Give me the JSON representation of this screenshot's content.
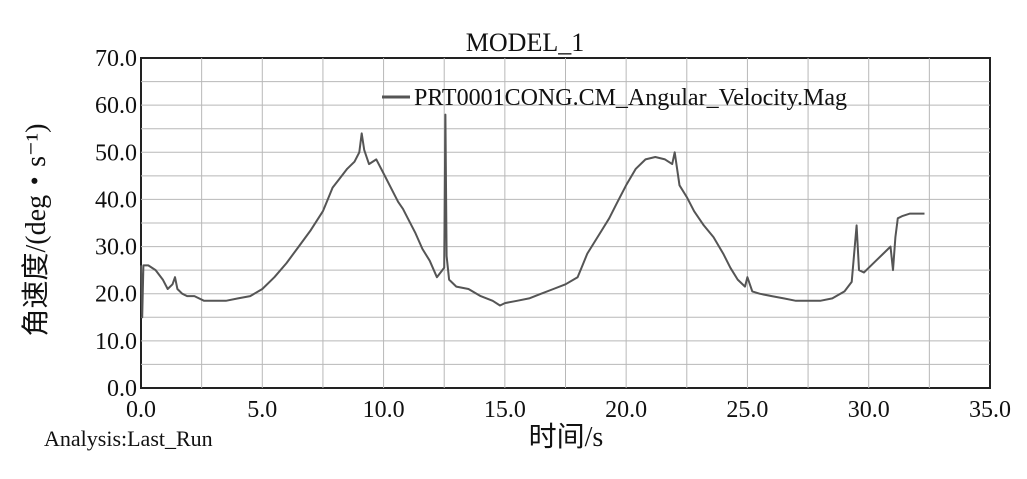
{
  "chart_data": {
    "type": "line",
    "title": "MODEL_1",
    "xlabel": "时间/s",
    "ylabel": "角速度/(deg・s⁻¹)",
    "footer": "Analysis:Last_Run",
    "xlim": [
      0,
      35
    ],
    "ylim": [
      0,
      70
    ],
    "x_ticks": [
      0,
      2.5,
      5,
      7.5,
      10,
      12.5,
      15,
      17.5,
      20,
      22.5,
      25,
      27.5,
      30,
      32.5,
      35
    ],
    "x_tick_labels": [
      "0.0",
      "5.0",
      "10.0",
      "15.0",
      "20.0",
      "25.0",
      "30.0",
      "35.0"
    ],
    "x_tick_label_values": [
      0,
      5,
      10,
      15,
      20,
      25,
      30,
      35
    ],
    "y_ticks": [
      0,
      5,
      10,
      15,
      20,
      25,
      30,
      35,
      40,
      45,
      50,
      55,
      60,
      65,
      70
    ],
    "y_tick_labels": [
      "0.0",
      "10.0",
      "20.0",
      "30.0",
      "40.0",
      "50.0",
      "60.0",
      "70.0"
    ],
    "y_tick_label_values": [
      0,
      10,
      20,
      30,
      40,
      50,
      60,
      70
    ],
    "grid": true,
    "legend_position": "top-right",
    "colors": {
      "series": "#555555",
      "grid": "#b8b8b8",
      "frame": "#222222",
      "background": "#ffffff"
    },
    "series": [
      {
        "name": "PRT0001CONG.CM_Angular_Velocity.Mag",
        "x": [
          0,
          0.05,
          0.1,
          0.3,
          0.6,
          0.9,
          1.1,
          1.3,
          1.4,
          1.5,
          1.7,
          1.9,
          2.2,
          2.6,
          3.0,
          3.5,
          4.0,
          4.5,
          5.0,
          5.5,
          6.0,
          6.5,
          7.0,
          7.5,
          7.7,
          7.9,
          8.2,
          8.5,
          8.8,
          9.0,
          9.1,
          9.2,
          9.4,
          9.7,
          10.0,
          10.3,
          10.6,
          10.8,
          11.0,
          11.3,
          11.6,
          11.9,
          12.2,
          12.5,
          12.55,
          12.6,
          12.7,
          13.0,
          13.5,
          14.0,
          14.5,
          14.8,
          15.0,
          15.5,
          16.0,
          16.5,
          17.0,
          17.5,
          18.0,
          18.2,
          18.4,
          18.7,
          19.0,
          19.3,
          19.6,
          20.0,
          20.4,
          20.8,
          21.2,
          21.6,
          21.9,
          22.0,
          22.2,
          22.5,
          22.8,
          23.2,
          23.6,
          24.0,
          24.3,
          24.6,
          24.9,
          25.0,
          25.2,
          25.5,
          26.0,
          26.5,
          27.0,
          27.5,
          28.0,
          28.5,
          29.0,
          29.3,
          29.5,
          29.6,
          29.8,
          30.0,
          30.3,
          30.6,
          30.9,
          31.0,
          31.1,
          31.2,
          31.4,
          31.7,
          32.0,
          32.3
        ],
        "y": [
          26,
          15,
          26,
          26,
          25,
          23,
          21,
          22,
          23.5,
          21,
          20,
          19.5,
          19.5,
          18.5,
          18.5,
          18.5,
          19,
          19.5,
          21,
          23.5,
          26.5,
          30,
          33.5,
          37.5,
          40,
          42.5,
          44.5,
          46.5,
          48,
          50,
          54,
          50.5,
          47.5,
          48.5,
          45.5,
          42.5,
          39.5,
          38,
          36,
          33,
          29.5,
          27,
          23.5,
          25.5,
          58,
          28,
          23,
          21.5,
          21,
          19.5,
          18.5,
          17.5,
          18,
          18.5,
          19,
          20,
          21,
          22,
          23.5,
          26,
          28.5,
          31,
          33.5,
          36,
          39,
          43,
          46.5,
          48.5,
          49,
          48.5,
          47.5,
          50,
          43,
          40.5,
          37.5,
          34.5,
          32,
          28.5,
          25.5,
          23,
          21.5,
          23.5,
          20.5,
          20,
          19.5,
          19,
          18.5,
          18.5,
          18.5,
          19,
          20.5,
          22.5,
          34.5,
          25,
          24.5,
          25.5,
          27,
          28.5,
          30,
          25,
          32,
          36,
          36.5,
          37,
          37,
          37
        ]
      }
    ]
  }
}
